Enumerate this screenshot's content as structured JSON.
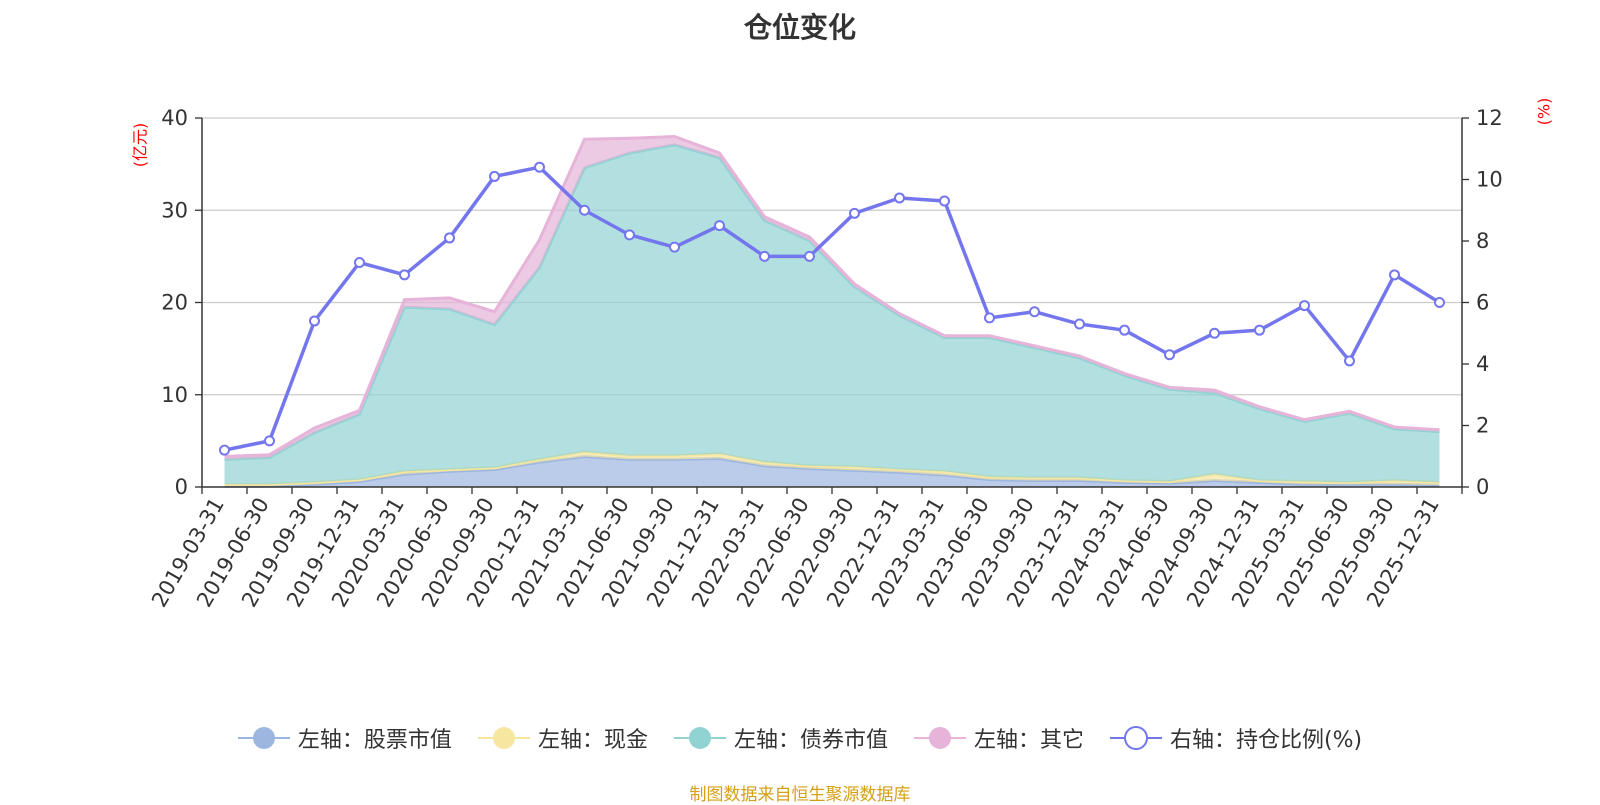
{
  "chart_data": {
    "type": "area",
    "title": "仓位变化",
    "y_left_unit": "(亿元)",
    "y_right_unit": "(%)",
    "y_left_lim": [
      0,
      40
    ],
    "y_left_ticks": [
      0,
      10,
      20,
      30,
      40
    ],
    "y_right_lim": [
      0,
      12
    ],
    "y_right_ticks": [
      0,
      2,
      4,
      6,
      8,
      10,
      12
    ],
    "categories": [
      "2019-03-31",
      "2019-06-30",
      "2019-09-30",
      "2019-12-31",
      "2020-03-31",
      "2020-06-30",
      "2020-09-30",
      "2020-12-31",
      "2021-03-31",
      "2021-06-30",
      "2021-09-30",
      "2021-12-31",
      "2022-03-31",
      "2022-06-30",
      "2022-09-30",
      "2022-12-31",
      "2023-03-31",
      "2023-06-30",
      "2023-09-30",
      "2023-12-31",
      "2024-03-31",
      "2024-06-30",
      "2024-09-30",
      "2024-12-31",
      "2025-03-31",
      "2025-06-30",
      "2025-09-30",
      "2025-12-31"
    ],
    "series": [
      {
        "name": "左轴：股票市值",
        "axis": "left",
        "color": "#9db6e0",
        "values": [
          0.1,
          0.1,
          0.3,
          0.6,
          1.4,
          1.7,
          1.9,
          2.7,
          3.3,
          3.0,
          3.0,
          3.1,
          2.3,
          2.0,
          1.8,
          1.6,
          1.3,
          0.8,
          0.7,
          0.7,
          0.5,
          0.4,
          0.7,
          0.5,
          0.3,
          0.3,
          0.3,
          0.2
        ]
      },
      {
        "name": "左轴：现金",
        "axis": "left",
        "color": "#f5e6a0",
        "values": [
          0.2,
          0.2,
          0.2,
          0.2,
          0.3,
          0.2,
          0.2,
          0.3,
          0.5,
          0.4,
          0.4,
          0.5,
          0.4,
          0.3,
          0.4,
          0.3,
          0.4,
          0.3,
          0.3,
          0.3,
          0.2,
          0.2,
          0.7,
          0.2,
          0.3,
          0.2,
          0.4,
          0.3
        ]
      },
      {
        "name": "左轴：债券市值",
        "axis": "left",
        "color": "#91d3d3",
        "values": [
          2.7,
          2.9,
          5.4,
          7.1,
          17.8,
          17.4,
          15.5,
          20.8,
          30.8,
          32.8,
          33.7,
          32.1,
          26.2,
          24.4,
          19.5,
          16.7,
          14.5,
          15.1,
          14.1,
          13.0,
          11.4,
          10.0,
          8.8,
          7.8,
          6.5,
          7.5,
          5.6,
          5.5
        ]
      },
      {
        "name": "左轴：其它",
        "axis": "left",
        "color": "#e6b3d9",
        "values": [
          0.3,
          0.3,
          0.5,
          0.4,
          0.8,
          1.2,
          1.4,
          3.0,
          3.1,
          1.6,
          0.9,
          0.5,
          0.4,
          0.4,
          0.3,
          0.2,
          0.2,
          0.2,
          0.2,
          0.2,
          0.2,
          0.2,
          0.3,
          0.2,
          0.2,
          0.2,
          0.2,
          0.2
        ]
      },
      {
        "name": "右轴：持仓比例(%)",
        "axis": "right",
        "color": "#7476ee",
        "values": [
          1.2,
          1.5,
          5.4,
          7.3,
          6.9,
          8.1,
          10.1,
          10.4,
          9.0,
          8.2,
          7.8,
          8.5,
          7.5,
          7.5,
          8.9,
          9.4,
          9.3,
          5.5,
          5.7,
          5.3,
          5.1,
          4.3,
          5.0,
          5.1,
          5.9,
          4.1,
          6.9,
          6.0
        ]
      }
    ],
    "legend_position": "bottom-center",
    "grid": true
  },
  "footer": {
    "source_note": "制图数据来自恒生聚源数据库"
  }
}
